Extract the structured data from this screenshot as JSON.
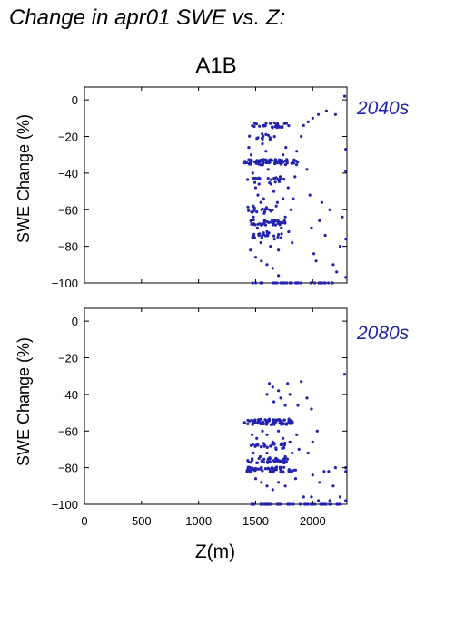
{
  "figure": {
    "title": "Change in apr01 SWE vs. Z:",
    "scenario": "A1B",
    "xlabel": "Z(m)",
    "ylabel": "SWE Change (%)",
    "point_color": "#2323b0"
  },
  "chart_data": [
    {
      "type": "scatter",
      "period": "2040s",
      "xlabel": "",
      "ylabel": "SWE Change (%)",
      "xlim": [
        0,
        2300
      ],
      "ylim": [
        -100,
        7
      ],
      "yticks": [
        0,
        -20,
        -40,
        -60,
        -80,
        -100
      ],
      "bands": [
        {
          "y": -14,
          "x": [
            1430,
            1800
          ],
          "n": 28
        },
        {
          "y": -20,
          "x": [
            1440,
            1720
          ],
          "n": 12
        },
        {
          "y": -34,
          "x": [
            1400,
            1870
          ],
          "n": 70
        },
        {
          "y": -44,
          "x": [
            1420,
            1780
          ],
          "n": 20
        },
        {
          "y": -60,
          "x": [
            1420,
            1700
          ],
          "n": 16
        },
        {
          "y": -67,
          "x": [
            1450,
            1760
          ],
          "n": 40
        },
        {
          "y": -74,
          "x": [
            1470,
            1750
          ],
          "n": 22
        },
        {
          "y": -100,
          "x": [
            1450,
            2200
          ],
          "n": 36
        }
      ],
      "scatter": [
        [
          1440,
          -26
        ],
        [
          1460,
          -30
        ],
        [
          1475,
          -40
        ],
        [
          1500,
          -48
        ],
        [
          1520,
          -52
        ],
        [
          1545,
          -56
        ],
        [
          1560,
          -24
        ],
        [
          1590,
          -28
        ],
        [
          1610,
          -38
        ],
        [
          1635,
          -46
        ],
        [
          1660,
          -50
        ],
        [
          1690,
          -56
        ],
        [
          1715,
          -42
        ],
        [
          1740,
          -30
        ],
        [
          1765,
          -26
        ],
        [
          1785,
          -48
        ],
        [
          1810,
          -60
        ],
        [
          1830,
          -54
        ],
        [
          1845,
          -42
        ],
        [
          1860,
          -28
        ],
        [
          1900,
          -20
        ],
        [
          1920,
          -14
        ],
        [
          1950,
          -38
        ],
        [
          1975,
          -52
        ],
        [
          1990,
          -70
        ],
        [
          2010,
          -84
        ],
        [
          2030,
          -88
        ],
        [
          2060,
          -66
        ],
        [
          2080,
          -56
        ],
        [
          2110,
          -74
        ],
        [
          2150,
          -60
        ],
        [
          2180,
          -90
        ],
        [
          2210,
          -94
        ],
        [
          2240,
          -80
        ],
        [
          2260,
          -64
        ],
        [
          1480,
          -64
        ],
        [
          1515,
          -70
        ],
        [
          1545,
          -78
        ],
        [
          1575,
          -62
        ],
        [
          1600,
          -72
        ],
        [
          1630,
          -80
        ],
        [
          1665,
          -76
        ],
        [
          1700,
          -82
        ],
        [
          1725,
          -70
        ],
        [
          1760,
          -64
        ],
        [
          1790,
          -72
        ],
        [
          1820,
          -78
        ],
        [
          1480,
          -58
        ],
        [
          1530,
          -46
        ],
        [
          1570,
          -54
        ],
        [
          1620,
          -60
        ],
        [
          1680,
          -58
        ],
        [
          1740,
          -54
        ],
        [
          1455,
          -82
        ],
        [
          1500,
          -86
        ],
        [
          1550,
          -88
        ],
        [
          1600,
          -90
        ],
        [
          1650,
          -92
        ],
        [
          1700,
          -96
        ],
        [
          1960,
          -12
        ],
        [
          2000,
          -10
        ],
        [
          2050,
          -8
        ],
        [
          2120,
          -6
        ],
        [
          2200,
          -8
        ],
        [
          2280,
          2
        ],
        [
          2290,
          -27
        ],
        [
          2290,
          -39
        ],
        [
          2290,
          -76
        ],
        [
          2290,
          -97
        ]
      ]
    },
    {
      "type": "scatter",
      "period": "2080s",
      "xlabel": "Z(m)",
      "ylabel": "SWE Change (%)",
      "xlim": [
        0,
        2300
      ],
      "ylim": [
        -100,
        7
      ],
      "xticks": [
        0,
        500,
        1000,
        1500,
        2000
      ],
      "yticks": [
        0,
        -20,
        -40,
        -60,
        -80,
        -100
      ],
      "bands": [
        {
          "y": -55,
          "x": [
            1400,
            1840
          ],
          "n": 70
        },
        {
          "y": -68,
          "x": [
            1430,
            1760
          ],
          "n": 26
        },
        {
          "y": -76,
          "x": [
            1430,
            1790
          ],
          "n": 40
        },
        {
          "y": -81,
          "x": [
            1420,
            1860
          ],
          "n": 55
        },
        {
          "y": -100,
          "x": [
            1450,
            2280
          ],
          "n": 45
        }
      ],
      "scatter": [
        [
          1620,
          -34
        ],
        [
          1650,
          -36
        ],
        [
          1700,
          -38
        ],
        [
          1780,
          -34
        ],
        [
          1900,
          -33
        ],
        [
          1600,
          -40
        ],
        [
          1660,
          -44
        ],
        [
          1720,
          -42
        ],
        [
          1760,
          -46
        ],
        [
          1800,
          -40
        ],
        [
          1870,
          -46
        ],
        [
          1950,
          -42
        ],
        [
          1990,
          -48
        ],
        [
          1470,
          -62
        ],
        [
          1510,
          -64
        ],
        [
          1560,
          -60
        ],
        [
          1600,
          -62
        ],
        [
          1650,
          -66
        ],
        [
          1700,
          -60
        ],
        [
          1740,
          -64
        ],
        [
          1800,
          -66
        ],
        [
          1860,
          -62
        ],
        [
          1960,
          -72
        ],
        [
          2000,
          -66
        ],
        [
          2040,
          -60
        ],
        [
          1480,
          -72
        ],
        [
          1540,
          -74
        ],
        [
          1600,
          -72
        ],
        [
          1680,
          -70
        ],
        [
          1760,
          -74
        ],
        [
          1820,
          -72
        ],
        [
          1880,
          -70
        ],
        [
          1500,
          -86
        ],
        [
          1550,
          -88
        ],
        [
          1600,
          -90
        ],
        [
          1650,
          -92
        ],
        [
          1700,
          -88
        ],
        [
          1760,
          -90
        ],
        [
          1850,
          -86
        ],
        [
          1920,
          -96
        ],
        [
          2000,
          -84
        ],
        [
          2060,
          -88
        ],
        [
          2100,
          -82
        ],
        [
          2140,
          -82
        ],
        [
          2180,
          -90
        ],
        [
          2200,
          -80
        ],
        [
          2240,
          -96
        ],
        [
          2280,
          -29
        ],
        [
          2290,
          -82
        ],
        [
          2290,
          -98
        ],
        [
          2290,
          -80
        ],
        [
          2150,
          -98
        ],
        [
          2050,
          -98
        ],
        [
          1990,
          -96
        ]
      ]
    }
  ]
}
